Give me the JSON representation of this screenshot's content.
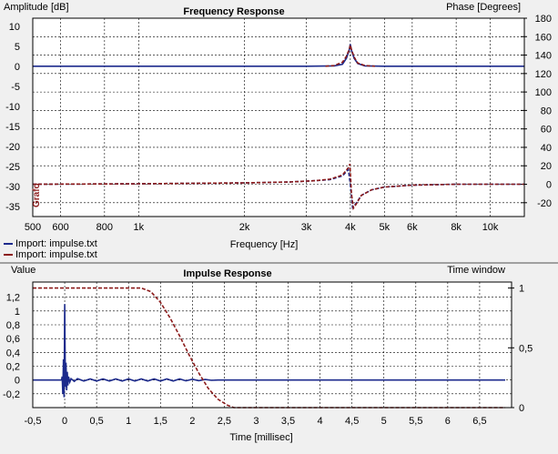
{
  "colors": {
    "blue": "#1c2a8c",
    "red": "#8b1a1a",
    "grid": "#000000",
    "bg": "#ffffff",
    "panel": "#f0f0f0"
  },
  "legend": [
    {
      "label": "Import: impulse.txt",
      "color": "#1c2a8c"
    },
    {
      "label": "Import: impulse.txt",
      "color": "#8b1a1a"
    }
  ],
  "freq": {
    "title": "Frequency Response",
    "left_label": "Amplitude [dB]",
    "right_label": "Phase [Degrees]",
    "xlabel": "Frequency [Hz]",
    "side_text": "Grafo"
  },
  "imp": {
    "title": "Impulse Response",
    "left_label": "Value",
    "right_label": "Time window",
    "xlabel": "Time [millisec]"
  },
  "chart_data": [
    {
      "type": "line",
      "title": "Frequency Response",
      "xlabel": "Frequency [Hz]",
      "ylabel": "Amplitude [dB]",
      "y2label": "Phase [Degrees]",
      "x_scale": "log",
      "xlim": [
        500,
        12500
      ],
      "ylim": [
        -37.5,
        12
      ],
      "y2lim": [
        -35,
        180
      ],
      "x_ticks": [
        {
          "value": 500,
          "label": "500"
        },
        {
          "value": 600,
          "label": "600"
        },
        {
          "value": 800,
          "label": "800"
        },
        {
          "value": 1000,
          "label": "1k"
        },
        {
          "value": 2000,
          "label": "2k"
        },
        {
          "value": 3000,
          "label": "3k"
        },
        {
          "value": 4000,
          "label": "4k"
        },
        {
          "value": 5000,
          "label": "5k"
        },
        {
          "value": 6000,
          "label": "6k"
        },
        {
          "value": 8000,
          "label": "8k"
        },
        {
          "value": 10000,
          "label": "10k"
        }
      ],
      "y_ticks": [
        10,
        5,
        0,
        -5,
        -10,
        -15,
        -20,
        -25,
        -30,
        -35
      ],
      "y2_ticks": [
        180,
        160,
        140,
        120,
        100,
        80,
        60,
        40,
        20,
        0,
        -20
      ],
      "grid": true,
      "series": [
        {
          "color": "#1c2a8c",
          "dash": false,
          "axis": "left",
          "x": [
            500,
            3000,
            3600,
            3800,
            3900,
            3970,
            4000,
            4030,
            4100,
            4200,
            4400,
            5000,
            12500
          ],
          "y": [
            0,
            0,
            0.1,
            0.5,
            2,
            4,
            5.5,
            4,
            2,
            0.7,
            0.1,
            0,
            0
          ]
        },
        {
          "color": "#8b1a1a",
          "dash": true,
          "axis": "left",
          "x": [
            3400,
            3600,
            3800,
            3900,
            3970,
            4000,
            4030,
            4100,
            4200,
            4400,
            4700
          ],
          "y": [
            0,
            0.2,
            1,
            2.5,
            4.2,
            5.3,
            4.2,
            2.3,
            0.8,
            0.2,
            0
          ]
        },
        {
          "color": "#1c2a8c",
          "dash": true,
          "axis": "right",
          "x": [
            500,
            1000,
            2000,
            2700,
            3200,
            3500,
            3800,
            3950,
            4000,
            4060,
            4150,
            4300,
            4600,
            5000,
            6000,
            8000,
            12500
          ],
          "y": [
            0,
            0.5,
            1.5,
            2.5,
            4,
            5,
            9,
            16,
            0,
            -25,
            -21,
            -12,
            -6,
            -3,
            -1,
            0,
            0
          ]
        },
        {
          "color": "#8b1a1a",
          "dash": true,
          "axis": "right",
          "x": [
            500,
            1000,
            2000,
            2700,
            3200,
            3500,
            3800,
            3950,
            3990,
            4030,
            4080,
            4150,
            4300,
            4600,
            5000,
            6000,
            8000,
            12500
          ],
          "y": [
            0,
            0.5,
            1.5,
            2.5,
            4,
            5.5,
            10,
            18,
            22,
            -10,
            -26,
            -22,
            -12,
            -6,
            -3,
            -1,
            0,
            0
          ]
        }
      ]
    },
    {
      "type": "line",
      "title": "Impulse Response",
      "xlabel": "Time [millisec]",
      "ylabel": "Value",
      "y2label": "Time window",
      "xlim": [
        -0.5,
        7.0
      ],
      "ylim": [
        -0.4,
        1.42
      ],
      "y2lim": [
        0,
        1.05
      ],
      "x_ticks": [
        {
          "value": -0.5,
          "label": "-0,5"
        },
        {
          "value": 0,
          "label": "0"
        },
        {
          "value": 0.5,
          "label": "0,5"
        },
        {
          "value": 1,
          "label": "1"
        },
        {
          "value": 1.5,
          "label": "1,5"
        },
        {
          "value": 2,
          "label": "2"
        },
        {
          "value": 2.5,
          "label": "2,5"
        },
        {
          "value": 3,
          "label": "3"
        },
        {
          "value": 3.5,
          "label": "3,5"
        },
        {
          "value": 4,
          "label": "4"
        },
        {
          "value": 4.5,
          "label": "4,5"
        },
        {
          "value": 5,
          "label": "5"
        },
        {
          "value": 5.5,
          "label": "5,5"
        },
        {
          "value": 6,
          "label": "6"
        },
        {
          "value": 6.5,
          "label": "6,5"
        }
      ],
      "y_ticks": [
        {
          "value": 1.2,
          "label": "1,2"
        },
        {
          "value": 1,
          "label": "1"
        },
        {
          "value": 0.8,
          "label": "0,8"
        },
        {
          "value": 0.6,
          "label": "0,6"
        },
        {
          "value": 0.4,
          "label": "0,4"
        },
        {
          "value": 0.2,
          "label": "0,2"
        },
        {
          "value": 0,
          "label": "0"
        },
        {
          "value": -0.2,
          "label": "-0,2"
        }
      ],
      "y2_ticks": [
        {
          "value": 1,
          "label": "1"
        },
        {
          "value": 0.5,
          "label": "0,5"
        },
        {
          "value": 0,
          "label": "0"
        }
      ],
      "grid": true,
      "series": [
        {
          "color": "#1c2a8c",
          "dash": false,
          "axis": "left",
          "x": [
            -0.5,
            -0.05,
            -0.04,
            -0.03,
            -0.02,
            -0.01,
            0.0,
            0.01,
            0.02,
            0.03,
            0.04,
            0.05,
            0.06,
            0.08,
            0.1,
            0.15,
            0.2,
            0.3,
            0.4,
            0.5,
            0.6,
            0.7,
            0.8,
            0.9,
            1.0,
            1.1,
            1.2,
            1.3,
            1.4,
            1.5,
            1.6,
            1.7,
            1.8,
            1.9,
            2.0,
            2.1,
            2.2,
            2.3,
            2.4,
            6.9
          ],
          "y": [
            0,
            0,
            0.05,
            -0.2,
            0.3,
            -0.25,
            1.1,
            -0.1,
            0.25,
            -0.15,
            0.12,
            -0.08,
            0.05,
            -0.03,
            0.02,
            -0.02,
            0.02,
            -0.015,
            0.015,
            -0.015,
            0.015,
            -0.015,
            0.015,
            -0.015,
            0.015,
            -0.015,
            0.015,
            -0.015,
            0.015,
            -0.015,
            0.015,
            -0.015,
            0.015,
            -0.012,
            0.012,
            -0.01,
            0.008,
            -0.005,
            0,
            0
          ]
        },
        {
          "color": "#8b1a1a",
          "dash": true,
          "axis": "right",
          "x": [
            -0.5,
            1.2,
            1.35,
            1.5,
            1.65,
            1.8,
            1.95,
            2.1,
            2.25,
            2.4,
            2.55,
            2.65,
            6.9
          ],
          "y": [
            1,
            1,
            0.97,
            0.88,
            0.75,
            0.6,
            0.44,
            0.29,
            0.16,
            0.07,
            0.02,
            0,
            0
          ]
        }
      ]
    }
  ]
}
